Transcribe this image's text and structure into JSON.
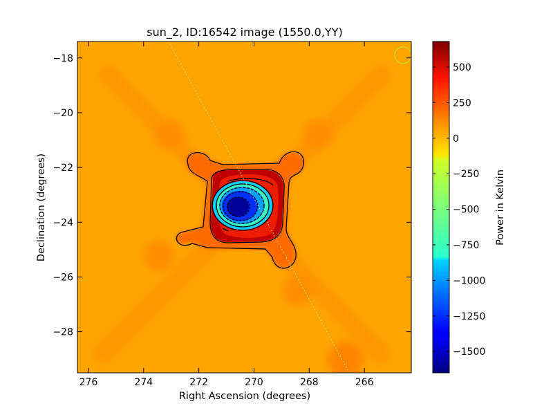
{
  "chart_data": {
    "type": "heatmap",
    "title": "sun_2, ID:16542 image (1550.0,YY)",
    "xlabel": "Right Ascension (degrees)",
    "ylabel": "Declination (degrees)",
    "xlim": [
      276.4,
      264.3
    ],
    "ylim": [
      -29.5,
      -17.4
    ],
    "x_ticks": [
      276,
      274,
      272,
      270,
      268,
      266
    ],
    "x_tick_labels": [
      "276",
      "274",
      "272",
      "270",
      "268",
      "266"
    ],
    "y_ticks": [
      -18,
      -20,
      -22,
      -24,
      -26,
      -28
    ],
    "y_tick_labels": [
      "−18",
      "−20",
      "−22",
      "−24",
      "−26",
      "−28"
    ],
    "background_level": 150,
    "colorbar": {
      "label": "Power in Kelvin",
      "range": [
        -1650,
        680
      ],
      "colormap": "jet",
      "ticks": [
        500,
        250,
        0,
        -250,
        -500,
        -750,
        -1000,
        -1250,
        -1500
      ],
      "tick_labels": [
        "500",
        "250",
        "0",
        "−250",
        "−500",
        "−750",
        "−1000",
        "−1250",
        "−1500"
      ]
    },
    "features": {
      "source_center_ra": 270.5,
      "source_center_dec": -23.5,
      "peak_positive_ring": 600,
      "peak_negative_core": -1600,
      "circle_marker_ra": 264.6,
      "circle_marker_dec": -17.9,
      "trajectory_line": {
        "ra_start": 273.1,
        "dec_start": -17.4,
        "ra_end": 266.6,
        "dec_end": -29.4
      }
    }
  }
}
